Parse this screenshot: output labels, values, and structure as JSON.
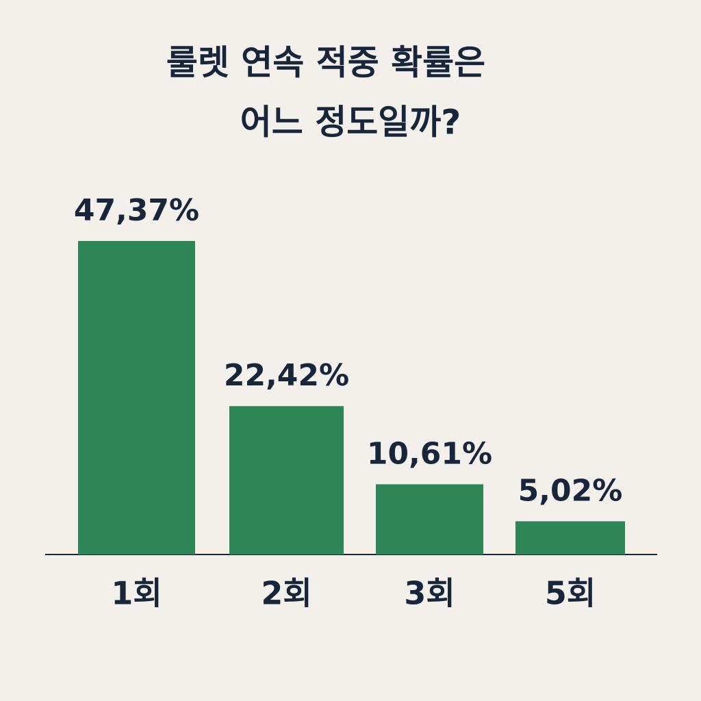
{
  "chart_data": {
    "type": "bar",
    "title": [
      "룰렛 연속 적중 확률은",
      "어느 정도일까?"
    ],
    "categories": [
      "1회",
      "2회",
      "3회",
      "5회"
    ],
    "values": [
      47.37,
      22.42,
      10.61,
      5.02
    ],
    "value_labels": [
      "47,37%",
      "22,42%",
      "10,61%",
      "5,02%"
    ],
    "color": "#2e8555"
  }
}
